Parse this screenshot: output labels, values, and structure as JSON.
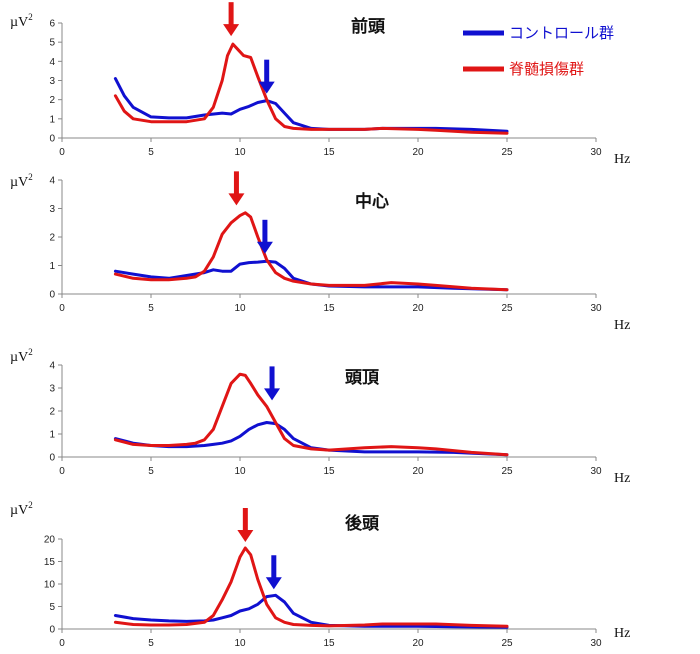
{
  "chart_data": {
    "type": "line",
    "xlabel": "Hz",
    "ylabel": "µV²",
    "ylabel_base": "µV",
    "ylabel_sup": "2",
    "xlim": [
      0,
      30
    ],
    "xticks": [
      0,
      5,
      10,
      15,
      20,
      25,
      30
    ],
    "legend": {
      "position": "top-right",
      "entries": [
        {
          "name": "コントロール群",
          "color": "#1010d0"
        },
        {
          "name": "脊髄損傷群",
          "color": "#e01515"
        }
      ]
    },
    "panels": [
      {
        "title": "前頭",
        "ylim": [
          0,
          6
        ],
        "yticks": [
          0,
          1,
          2,
          3,
          4,
          5,
          6
        ],
        "arrows": [
          {
            "series": "脊髄損傷群",
            "x": 9.5,
            "y": 5.0
          },
          {
            "series": "コントロール群",
            "x": 11.5,
            "y": 2.0
          }
        ],
        "series": [
          {
            "name": "コントロール群",
            "x": [
              3,
              3.5,
              4,
              5,
              6,
              7,
              8,
              9,
              9.5,
              10,
              10.5,
              11,
              11.5,
              12,
              12.5,
              13,
              14,
              15,
              17,
              18,
              20,
              21,
              23,
              25
            ],
            "y": [
              3.1,
              2.2,
              1.6,
              1.1,
              1.05,
              1.05,
              1.2,
              1.3,
              1.25,
              1.5,
              1.65,
              1.85,
              1.95,
              1.8,
              1.3,
              0.8,
              0.5,
              0.45,
              0.45,
              0.5,
              0.5,
              0.5,
              0.45,
              0.35
            ]
          },
          {
            "name": "脊髄損傷群",
            "x": [
              3,
              3.5,
              4,
              5,
              6,
              7,
              8,
              8.5,
              9,
              9.3,
              9.6,
              9.9,
              10.2,
              10.6,
              11,
              11.5,
              12,
              12.5,
              13,
              14,
              15,
              17,
              18,
              20,
              21,
              23,
              25
            ],
            "y": [
              2.2,
              1.4,
              1.0,
              0.85,
              0.85,
              0.85,
              1.0,
              1.6,
              3.0,
              4.3,
              4.9,
              4.6,
              4.3,
              4.2,
              3.2,
              2.0,
              1.0,
              0.6,
              0.5,
              0.45,
              0.45,
              0.45,
              0.5,
              0.45,
              0.4,
              0.3,
              0.25
            ]
          }
        ]
      },
      {
        "title": "中心",
        "ylim": [
          0,
          4
        ],
        "yticks": [
          0,
          1,
          2,
          3,
          4
        ],
        "arrows": [
          {
            "series": "脊髄損傷群",
            "x": 9.8,
            "y": 2.9
          },
          {
            "series": "コントロール群",
            "x": 11.4,
            "y": 1.2
          }
        ],
        "series": [
          {
            "name": "コントロール群",
            "x": [
              3,
              4,
              5,
              6,
              7,
              8,
              8.5,
              9,
              9.5,
              10,
              10.5,
              11,
              11.5,
              12,
              12.5,
              13,
              14,
              15,
              17,
              20,
              22,
              25
            ],
            "y": [
              0.8,
              0.7,
              0.6,
              0.55,
              0.65,
              0.75,
              0.85,
              0.8,
              0.8,
              1.05,
              1.1,
              1.12,
              1.15,
              1.12,
              0.9,
              0.55,
              0.35,
              0.28,
              0.25,
              0.25,
              0.2,
              0.15
            ]
          },
          {
            "name": "脊髄損傷群",
            "x": [
              3,
              4,
              5,
              6,
              7,
              7.5,
              8,
              8.5,
              9,
              9.5,
              10,
              10.3,
              10.6,
              11,
              11.5,
              12,
              12.5,
              13,
              14,
              15,
              17,
              18.5,
              20,
              21,
              23,
              25
            ],
            "y": [
              0.7,
              0.55,
              0.5,
              0.5,
              0.55,
              0.6,
              0.8,
              1.3,
              2.1,
              2.5,
              2.75,
              2.85,
              2.7,
              2.0,
              1.2,
              0.75,
              0.55,
              0.45,
              0.35,
              0.3,
              0.3,
              0.4,
              0.35,
              0.3,
              0.2,
              0.15
            ]
          }
        ]
      },
      {
        "title": "頭頂",
        "ylim": [
          0,
          4
        ],
        "yticks": [
          0,
          1,
          2,
          3,
          4
        ],
        "arrows": [
          {
            "series": "コントロール群",
            "x": 11.8,
            "y": 2.2
          }
        ],
        "series": [
          {
            "name": "コントロール群",
            "x": [
              3,
              4,
              5,
              6,
              7,
              8,
              8.5,
              9,
              9.5,
              10,
              10.5,
              11,
              11.5,
              12,
              12.5,
              13,
              14,
              15,
              17,
              20,
              22,
              25
            ],
            "y": [
              0.8,
              0.6,
              0.5,
              0.45,
              0.45,
              0.5,
              0.55,
              0.6,
              0.7,
              0.9,
              1.2,
              1.4,
              1.5,
              1.45,
              1.2,
              0.8,
              0.4,
              0.3,
              0.22,
              0.22,
              0.2,
              0.1
            ]
          },
          {
            "name": "脊髄損傷群",
            "x": [
              3,
              4,
              5,
              6,
              7,
              7.5,
              8,
              8.5,
              9,
              9.5,
              10,
              10.3,
              10.6,
              11,
              11.5,
              12,
              12.5,
              13,
              14,
              15,
              17,
              18.5,
              20,
              21,
              23,
              25
            ],
            "y": [
              0.75,
              0.55,
              0.5,
              0.5,
              0.55,
              0.6,
              0.75,
              1.2,
              2.2,
              3.2,
              3.6,
              3.55,
              3.2,
              2.7,
              2.2,
              1.5,
              0.8,
              0.5,
              0.35,
              0.3,
              0.4,
              0.45,
              0.4,
              0.35,
              0.2,
              0.1
            ]
          }
        ]
      },
      {
        "title": "後頭",
        "ylim": [
          0,
          20
        ],
        "yticks": [
          0,
          5,
          10,
          15,
          20
        ],
        "arrows": [
          {
            "series": "脊髄損傷群",
            "x": 10.3,
            "y": 18
          },
          {
            "series": "コントロール群",
            "x": 11.9,
            "y": 7.5
          }
        ],
        "series": [
          {
            "name": "コントロール群",
            "x": [
              3,
              4,
              5,
              6,
              7,
              8,
              8.5,
              9,
              9.5,
              10,
              10.5,
              11,
              11.5,
              12,
              12.5,
              13,
              14,
              15,
              17,
              20,
              22,
              25
            ],
            "y": [
              3.0,
              2.3,
              2.0,
              1.8,
              1.7,
              1.8,
              2.0,
              2.5,
              3.0,
              4.0,
              4.5,
              5.5,
              7.2,
              7.5,
              6.0,
              3.5,
              1.5,
              0.8,
              0.6,
              0.6,
              0.5,
              0.4
            ]
          },
          {
            "name": "脊髄損傷群",
            "x": [
              3,
              4,
              5,
              6,
              7,
              8,
              8.5,
              9,
              9.5,
              10,
              10.3,
              10.6,
              11,
              11.5,
              12,
              12.5,
              13,
              14,
              15,
              17,
              18,
              20,
              21,
              23,
              25
            ],
            "y": [
              1.5,
              1.0,
              0.9,
              0.9,
              1.0,
              1.5,
              3.0,
              6.5,
              10.5,
              16.0,
              18.0,
              16.5,
              11.0,
              5.5,
              2.5,
              1.5,
              1.0,
              0.8,
              0.7,
              0.9,
              1.1,
              1.1,
              1.1,
              0.8,
              0.6
            ]
          }
        ]
      }
    ]
  }
}
